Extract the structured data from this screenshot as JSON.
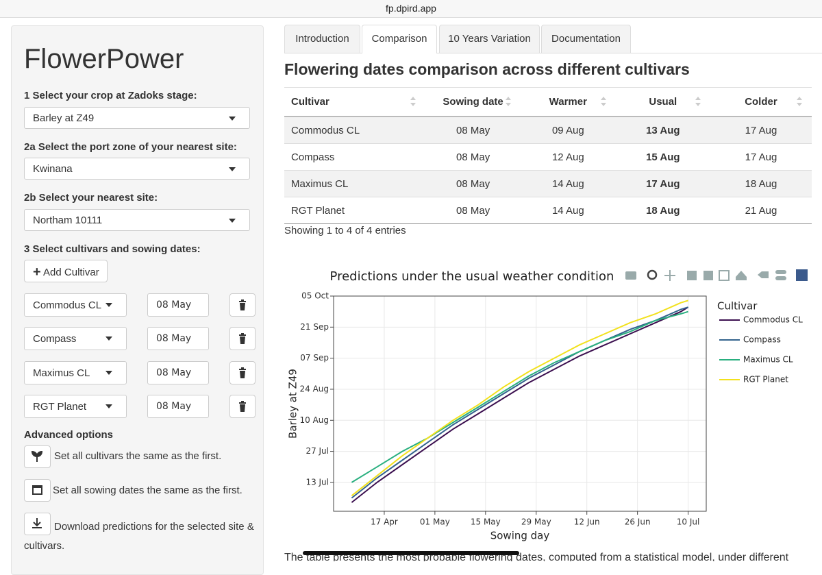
{
  "browser": {
    "url": "fp.dpird.app"
  },
  "sidebar": {
    "title": "FlowerPower",
    "crop_label": "1 Select your crop at Zadoks stage:",
    "crop": "Barley at Z49",
    "port_label": "2a Select the port zone of your nearest site:",
    "port": "Kwinana",
    "site_label": "2b Select your nearest site:",
    "site": "Northam 10111",
    "cultivars_label": "3 Select cultivars and sowing dates:",
    "add_button": "Add Cultivar",
    "cultivars": [
      {
        "name": "Commodus CL",
        "date": "08 May"
      },
      {
        "name": "Compass",
        "date": "08 May"
      },
      {
        "name": "Maximus CL",
        "date": "08 May"
      },
      {
        "name": "RGT Planet",
        "date": "08 May"
      }
    ],
    "advanced_label": "Advanced options",
    "options": [
      "Set all cultivars the same as the first.",
      "Set all sowing dates the same as the first.",
      "Download predictions for the selected site & cultivars."
    ]
  },
  "tabs": [
    "Introduction",
    "Comparison",
    "10 Years Variation",
    "Documentation"
  ],
  "heading": "Flowering dates comparison across different cultivars",
  "table": {
    "columns": [
      "Cultivar",
      "Sowing date",
      "Warmer",
      "Usual",
      "Colder"
    ],
    "rows": [
      [
        "Commodus CL",
        "08 May",
        "09 Aug",
        "13 Aug",
        "17 Aug"
      ],
      [
        "Compass",
        "08 May",
        "12 Aug",
        "15 Aug",
        "17 Aug"
      ],
      [
        "Maximus CL",
        "08 May",
        "14 Aug",
        "17 Aug",
        "18 Aug"
      ],
      [
        "RGT Planet",
        "08 May",
        "14 Aug",
        "18 Aug",
        "21 Aug"
      ]
    ],
    "info": "Showing 1 to 4 of 4 entries"
  },
  "chart": {
    "type": "line",
    "title": "Predictions under the usual weather condition",
    "xlabel": "Sowing day",
    "ylabel": "Barley at Z49",
    "legend_title": "Cultivar",
    "x": [
      "04-08",
      "04-15",
      "04-22",
      "04-29",
      "05-06",
      "05-13",
      "05-20",
      "05-27",
      "06-03",
      "06-10",
      "06-17",
      "06-24",
      "07-01",
      "07-08",
      "07-10"
    ],
    "xlim": [
      "04-03",
      "07-15"
    ],
    "xticks": [
      {
        "value": "04-17",
        "label": "17 Apr"
      },
      {
        "value": "05-01",
        "label": "01 May"
      },
      {
        "value": "05-15",
        "label": "15 May"
      },
      {
        "value": "05-29",
        "label": "29 May"
      },
      {
        "value": "06-12",
        "label": "12 Jun"
      },
      {
        "value": "06-26",
        "label": "26 Jun"
      },
      {
        "value": "07-10",
        "label": "10 Jul"
      }
    ],
    "ylim": [
      "06-30",
      "10-05"
    ],
    "yticks": [
      {
        "value": "07-13",
        "label": "13 Jul"
      },
      {
        "value": "07-27",
        "label": "27 Jul"
      },
      {
        "value": "08-10",
        "label": "10 Aug"
      },
      {
        "value": "08-24",
        "label": "24 Aug"
      },
      {
        "value": "09-07",
        "label": "07 Sep"
      },
      {
        "value": "09-21",
        "label": "21 Sep"
      },
      {
        "value": "10-05",
        "label": "05 Oct"
      }
    ],
    "grid": true,
    "series": [
      {
        "name": "Commodus CL",
        "color": "#3b0f4f",
        "values": [
          "07-04",
          "07-13",
          "07-21",
          "07-29",
          "08-06",
          "08-13",
          "08-20",
          "08-27",
          "09-02",
          "09-08",
          "09-13",
          "09-18",
          "09-23",
          "09-28",
          "09-30"
        ]
      },
      {
        "name": "Compass",
        "color": "#33638d",
        "values": [
          "07-06",
          "07-15",
          "07-23",
          "07-31",
          "08-08",
          "08-15",
          "08-22",
          "08-29",
          "09-04",
          "09-10",
          "09-15",
          "09-20",
          "09-24",
          "09-29",
          "09-30"
        ]
      },
      {
        "name": "Maximus CL",
        "color": "#29af7f",
        "values": [
          "07-13",
          "07-20",
          "07-27",
          "08-02",
          "08-09",
          "08-16",
          "08-23",
          "08-30",
          "09-05",
          "09-10",
          "09-15",
          "09-19",
          "09-24",
          "09-27",
          "09-28"
        ]
      },
      {
        "name": "RGT Planet",
        "color": "#f2e11d",
        "values": [
          "07-07",
          "07-16",
          "07-25",
          "08-02",
          "08-10",
          "08-17",
          "08-25",
          "09-01",
          "09-07",
          "09-13",
          "09-18",
          "09-23",
          "09-27",
          "10-02",
          "10-03"
        ]
      }
    ]
  },
  "footer_text": "The table presents the most probable flowering dates, computed from a statistical model, under different"
}
